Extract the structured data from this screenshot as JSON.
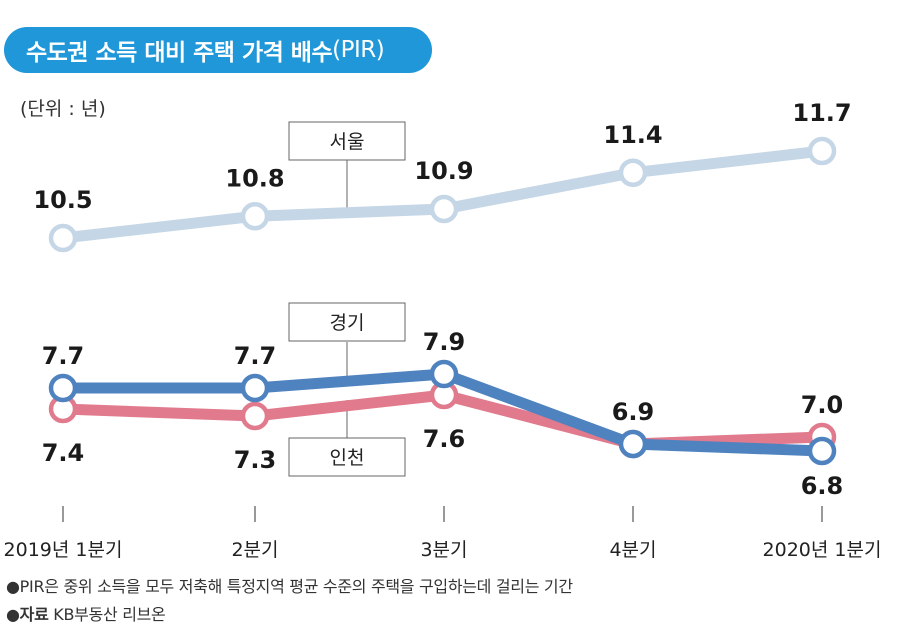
{
  "title": {
    "main": "수도권 소득 대비 주택 가격 배수",
    "paren": "(PIR)"
  },
  "unit_label": "(단위 : 년)",
  "colors": {
    "title_bg": "#1f97d8",
    "seoul": "#c5d6e6",
    "gyeonggi": "#4f83c0",
    "incheon": "#e07a8c",
    "marker_fill": "#ffffff",
    "tick": "#555555",
    "series_box_border": "#666666"
  },
  "chart_data": {
    "type": "line",
    "categories": [
      "2019년 1분기",
      "2분기",
      "3분기",
      "4분기",
      "2020년 1분기"
    ],
    "series": [
      {
        "name": "서울",
        "values": [
          10.5,
          10.8,
          10.9,
          11.4,
          11.7
        ]
      },
      {
        "name": "경기",
        "values": [
          7.7,
          7.7,
          7.9,
          6.9,
          6.8
        ]
      },
      {
        "name": "인천",
        "values": [
          7.4,
          7.3,
          7.6,
          6.9,
          7.0
        ]
      }
    ],
    "value_labels": {
      "seoul": [
        "10.5",
        "10.8",
        "10.9",
        "11.4",
        "11.7"
      ],
      "gyeonggi": [
        "7.7",
        "7.7",
        "7.9",
        "6.9",
        "6.8"
      ],
      "incheon": [
        "7.4",
        "7.3",
        "7.6",
        "",
        "7.0"
      ]
    },
    "legend_placement": "inline boxes on connector lines",
    "grid": false
  },
  "notes": {
    "pir_bullet": "●",
    "pir_text": "PIR은 중위 소득을 모두 저축해 특정지역 평균 수준의 주택을 구입하는데 걸리는 기간",
    "source_bullet": "●",
    "source_label": "자료",
    "source_text": " KB부동산 리브온"
  }
}
